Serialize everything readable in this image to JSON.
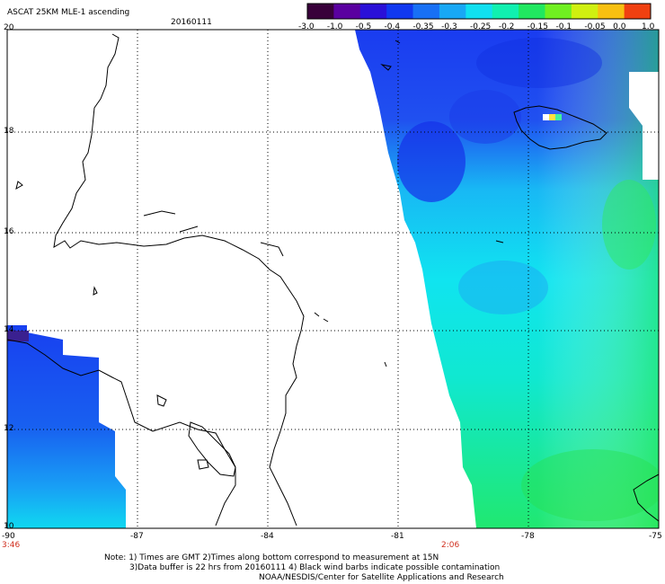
{
  "header": {
    "title": "ASCAT 25KM MLE-1 ascending",
    "date": "20160111"
  },
  "colorbar": {
    "labels": [
      "-3.0",
      "-1.0",
      "-0.5",
      "-0.4",
      "-0.35",
      "-0.3",
      "-0.25",
      "-0.2",
      "-0.15",
      "-0.1",
      "-0.05",
      "0.0",
      "1.0"
    ],
    "colors": [
      "#38003a",
      "#5a00a0",
      "#2a10d8",
      "#1038f0",
      "#1870f5",
      "#18a8f5",
      "#10e0f0",
      "#10f0b0",
      "#20e860",
      "#70f020",
      "#d0f010",
      "#f8c010",
      "#f04010"
    ]
  },
  "axes": {
    "lat_labels": [
      "20",
      "18",
      "16",
      "14",
      "12",
      "10"
    ],
    "lon_labels": [
      "-90",
      "-87",
      "-84",
      "-81",
      "-78",
      "-75"
    ]
  },
  "times": {
    "left": "3:46",
    "right": "2:06"
  },
  "notes": {
    "line1": "Note: 1) Times are GMT 2)Times along bottom correspond to measurement at 15N",
    "line2": "3)Data buffer is 22 hrs from 20160111 4) Black wind barbs indicate possible contamination",
    "line3": "NOAA/NESDIS/Center for Satellite Applications and Research"
  }
}
